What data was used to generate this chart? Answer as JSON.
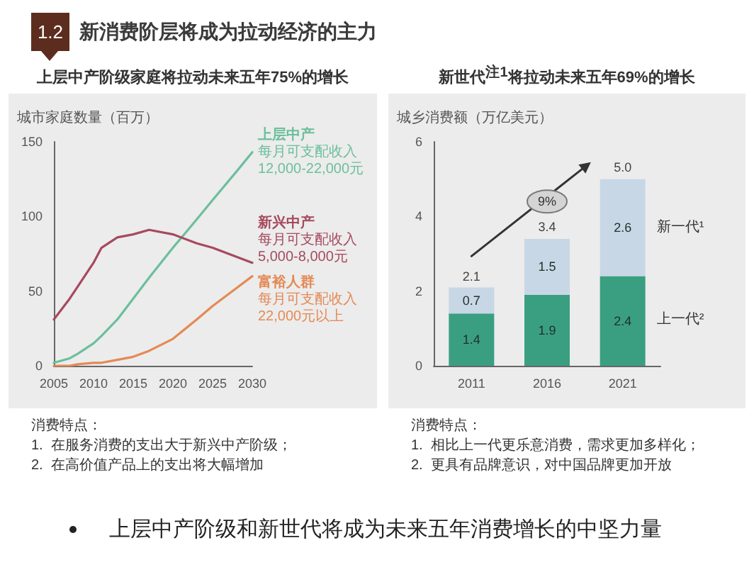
{
  "chart_data": [
    {
      "type": "other",
      "title": "新消费阶层将成为拉动经济的主力",
      "annotations": [
        "1.2"
      ]
    },
    {
      "type": "line",
      "title": "上层中产阶级家庭将拉动未来五年75%的增长",
      "ylabel": "城市家庭数量（百万）",
      "x": [
        2005,
        2007,
        2008,
        2010,
        2011,
        2013,
        2015,
        2017,
        2020,
        2023,
        2025,
        2028,
        2030
      ],
      "series": [
        {
          "name": "上层中产",
          "color": "#6cbf9c",
          "values": [
            2,
            5,
            8,
            15,
            20,
            31,
            45,
            59,
            79,
            98,
            111,
            130,
            143
          ]
        },
        {
          "name": "新兴中产",
          "color": "#a64a5e",
          "values": [
            31,
            45,
            53,
            69,
            79,
            86,
            88,
            91,
            88,
            82,
            79,
            73,
            69
          ]
        },
        {
          "name": "富裕人群",
          "color": "#e48a55",
          "values": [
            0,
            0,
            1,
            2,
            2,
            4,
            6,
            10,
            18,
            31,
            40,
            52,
            60
          ]
        }
      ],
      "xlim": [
        2005,
        2030
      ],
      "xticks": [
        2005,
        2010,
        2015,
        2020,
        2025,
        2030
      ],
      "ylim": [
        0,
        150
      ],
      "yticks": [
        0,
        50,
        100,
        150
      ],
      "grid": false,
      "marker": "none",
      "line_style": "solid",
      "annotations": [
        "每月可支配收入\n12,000-22,000元",
        "每月可支配收入\n5,000-8,000元",
        "每月可支配收入\n22,000元以上",
        "消费特点：",
        "1.  在服务消费的支出大于新兴中产阶级；",
        "2.  在高价值产品上的支出将大幅增加"
      ]
    },
    {
      "type": "bar",
      "stacked": true,
      "title": "新世代$^{注1}$将拉动未来五年69%的增长",
      "ylabel": "城乡消费额（万亿美元）",
      "categories": [
        "2011",
        "2016",
        "2021"
      ],
      "series": [
        {
          "name": "上一代²",
          "color": "#3a9f81",
          "values": [
            1.4,
            1.9,
            2.4
          ]
        },
        {
          "name": "新一代¹",
          "color": "#c8d7e5",
          "values": [
            0.7,
            1.5,
            2.6
          ]
        }
      ],
      "ylim": [
        0,
        6
      ],
      "yticks": [
        0,
        2,
        4,
        6
      ],
      "grid": false,
      "data_labels": true,
      "totals": [
        "2.1",
        "3.4",
        "5.0"
      ],
      "annotations": [
        {
          "text": "9%",
          "x": "2016",
          "y": 4.4
        },
        "消费特点：",
        "1.  相比上一代更乐意消费，需求更加多样化；",
        "2.  更具有品牌意识，对中国品牌更加开放"
      ]
    },
    {
      "type": "other",
      "annotations": [
        "上层中产阶级和新世代将成为未来五年消费增长的中坚力量"
      ]
    }
  ]
}
